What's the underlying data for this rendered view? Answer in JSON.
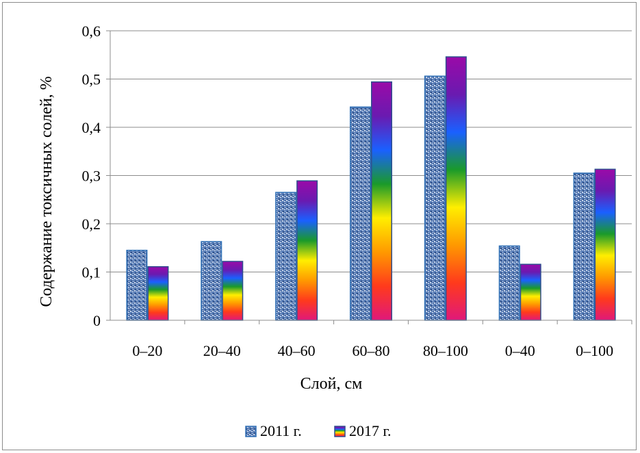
{
  "chart_data": {
    "type": "bar",
    "categories": [
      "0–20",
      "20–40",
      "40–60",
      "60–80",
      "80–100",
      "0–40",
      "0–100"
    ],
    "series": [
      {
        "name": "2011 г.",
        "values": [
          0.145,
          0.163,
          0.265,
          0.442,
          0.506,
          0.154,
          0.305
        ],
        "color": "#5b7fb8",
        "border": "#2e6fb5"
      },
      {
        "name": "2017 г.",
        "values": [
          0.111,
          0.122,
          0.289,
          0.494,
          0.546,
          0.116,
          0.313
        ],
        "gradient": [
          "#e0187a",
          "#ff3a1c",
          "#ff9900",
          "#ffee00",
          "#1a9a2a",
          "#1a60ff",
          "#6a1ab0",
          "#9a0aa8"
        ],
        "border": "#2e4f8f"
      }
    ],
    "title": "",
    "xlabel": "Слой, см",
    "ylabel": "Содержание токсичных солей, %",
    "ylim": [
      0,
      0.6
    ],
    "yticks": [
      0,
      0.1,
      0.2,
      0.3,
      0.4,
      0.5,
      0.6
    ],
    "ytick_labels": [
      "0",
      "0,1",
      "0,2",
      "0,3",
      "0,4",
      "0,5",
      "0,6"
    ],
    "grid": true,
    "legend_position": "bottom"
  }
}
